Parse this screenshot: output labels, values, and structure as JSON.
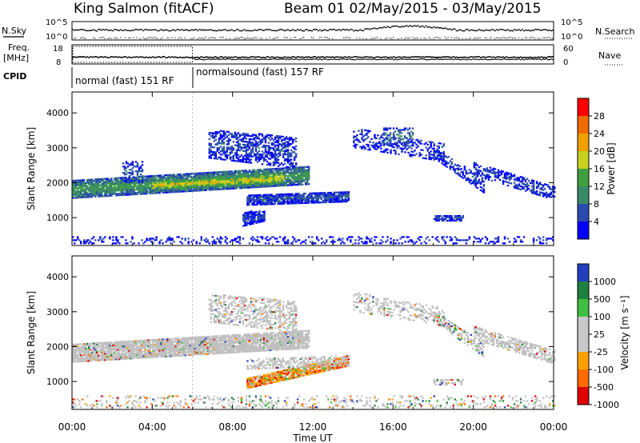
{
  "header": {
    "station": "King Salmon (fitACF)",
    "beam_date": "Beam 01  02/May/2015 - 03/May/2015"
  },
  "summary": {
    "nsky_label": "N.Sky",
    "nsearch_label": "N.Search",
    "nsky_ticks": [
      "10^5",
      "10^0"
    ],
    "nsearch_ticks": [
      "10^5",
      "10^0"
    ],
    "freq_label_1": "Freq.",
    "freq_label_2": "[MHz]",
    "freq_ticks": [
      "18",
      "8"
    ],
    "nave_label": "Nave",
    "nave_ticks": [
      "60",
      "0"
    ],
    "cpid_label": "CPID",
    "cpid_modes": [
      {
        "label": "normal (fast) 151 RF",
        "start_hour": 0,
        "end_hour": 6
      },
      {
        "label": "normalsound (fast) 157 RF",
        "start_hour": 6,
        "end_hour": 24
      }
    ]
  },
  "colors": {
    "power": [
      "#0000ff",
      "#2a4bb0",
      "#3a8a6a",
      "#40a040",
      "#c8d020",
      "#f0a000",
      "#f06a00",
      "#ff0000"
    ],
    "velocity": [
      "#e00000",
      "#ff6a00",
      "#ffa000",
      "#c8c8c8",
      "#c8c8c8",
      "#40c040",
      "#208040",
      "#2040c0"
    ],
    "ground_scatter": "#c0c0c0"
  },
  "chart_data": [
    {
      "type": "heatmap",
      "panel": "power",
      "ylabel": "Slant Range [km]",
      "ylim": [
        200,
        4600
      ],
      "yticks": [
        "1000",
        "2000",
        "3000",
        "4000"
      ],
      "xlim": [
        0,
        24
      ],
      "colorbar_label": "Power [dB]",
      "colorbar_ticks": [
        "4",
        "8",
        "12",
        "16",
        "20",
        "24",
        "28"
      ],
      "colorbar_range": [
        0,
        32
      ],
      "regions": [
        {
          "t0": 0.0,
          "t1": 11.8,
          "r0a": 1550,
          "r1a": 2050,
          "r0b": 1950,
          "r1b": 2450,
          "level": 13,
          "density": 0.9
        },
        {
          "t0": 4.0,
          "t1": 10.5,
          "r0a": 1750,
          "r1a": 2050,
          "r0b": 1950,
          "r1b": 2300,
          "level": 20,
          "density": 0.85
        },
        {
          "t0": 2.5,
          "t1": 3.5,
          "r0a": 2000,
          "r1a": 2600,
          "r0b": 2000,
          "r1b": 2600,
          "level": 7,
          "density": 0.45
        },
        {
          "t0": 6.8,
          "t1": 11.2,
          "r0a": 2700,
          "r1a": 3500,
          "r0b": 2400,
          "r1b": 3300,
          "level": 6,
          "density": 0.55
        },
        {
          "t0": 8.7,
          "t1": 13.8,
          "r0a": 1350,
          "r1a": 1650,
          "r0b": 1450,
          "r1b": 1750,
          "level": 7,
          "density": 0.85
        },
        {
          "t0": 8.5,
          "t1": 9.6,
          "r0a": 750,
          "r1a": 1150,
          "r0b": 900,
          "r1b": 1200,
          "level": 5,
          "density": 0.85
        },
        {
          "t0": 14.0,
          "t1": 18.5,
          "r0a": 3000,
          "r1a": 3550,
          "r0b": 2600,
          "r1b": 3100,
          "level": 5,
          "density": 0.35
        },
        {
          "t0": 15.5,
          "t1": 17.0,
          "r0a": 3050,
          "r1a": 3550,
          "r0b": 3050,
          "r1b": 3550,
          "level": 9,
          "density": 0.4
        },
        {
          "t0": 18.0,
          "t1": 20.5,
          "r0a": 2700,
          "r1a": 3000,
          "r0b": 1700,
          "r1b": 2100,
          "level": 6,
          "density": 0.55
        },
        {
          "t0": 20.0,
          "t1": 24.0,
          "r0a": 2200,
          "r1a": 2600,
          "r0b": 1500,
          "r1b": 1900,
          "level": 6,
          "density": 0.55
        },
        {
          "t0": 18.0,
          "t1": 19.5,
          "r0a": 900,
          "r1a": 1050,
          "r0b": 900,
          "r1b": 1050,
          "level": 7,
          "density": 0.7
        },
        {
          "t0": 0.0,
          "t1": 24.0,
          "r0a": 250,
          "r1a": 450,
          "r0b": 250,
          "r1b": 450,
          "level": 4,
          "density": 0.25
        }
      ]
    },
    {
      "type": "heatmap",
      "panel": "velocity",
      "ylabel": "Slant Range [km]",
      "xlabel": "Time UT",
      "ylim": [
        200,
        4600
      ],
      "yticks": [
        "1000",
        "2000",
        "3000",
        "4000"
      ],
      "xlim": [
        0,
        24
      ],
      "xticks": [
        "00:00",
        "04:00",
        "08:00",
        "12:00",
        "16:00",
        "20:00",
        "00:00"
      ],
      "colorbar_label": "Velocity [m s⁻¹]",
      "colorbar_ticks": [
        "1000",
        "500",
        "100",
        "25",
        "-25",
        "-100",
        "-500",
        "-1000"
      ],
      "regions": [
        {
          "t0": 0.0,
          "t1": 11.8,
          "r0a": 1550,
          "r1a": 2050,
          "r0b": 1950,
          "r1b": 2450,
          "kind": "ground",
          "density": 0.9
        },
        {
          "t0": 6.8,
          "t1": 11.2,
          "r0a": 2700,
          "r1a": 3500,
          "r0b": 2400,
          "r1b": 3300,
          "kind": "ground",
          "density": 0.4
        },
        {
          "t0": 8.7,
          "t1": 13.8,
          "r0a": 800,
          "r1a": 1100,
          "r0b": 1450,
          "r1b": 1750,
          "kind": "negative",
          "density": 0.85
        },
        {
          "t0": 8.7,
          "t1": 13.8,
          "r0a": 1350,
          "r1a": 1650,
          "r0b": 1450,
          "r1b": 1750,
          "kind": "ground",
          "density": 0.5
        },
        {
          "t0": 14.0,
          "t1": 18.5,
          "r0a": 3000,
          "r1a": 3550,
          "r0b": 2600,
          "r1b": 3100,
          "kind": "ground",
          "density": 0.3
        },
        {
          "t0": 18.0,
          "t1": 20.5,
          "r0a": 2700,
          "r1a": 3000,
          "r0b": 1700,
          "r1b": 2100,
          "kind": "mixed",
          "density": 0.5
        },
        {
          "t0": 20.0,
          "t1": 24.0,
          "r0a": 2200,
          "r1a": 2600,
          "r0b": 1500,
          "r1b": 1900,
          "kind": "ground",
          "density": 0.55
        },
        {
          "t0": 18.0,
          "t1": 19.5,
          "r0a": 900,
          "r1a": 1050,
          "r0b": 900,
          "r1b": 1050,
          "kind": "ground",
          "density": 0.6
        },
        {
          "t0": 0.0,
          "t1": 24.0,
          "r0a": 250,
          "r1a": 600,
          "r0b": 250,
          "r1b": 600,
          "kind": "mixed",
          "density": 0.2
        }
      ]
    }
  ]
}
